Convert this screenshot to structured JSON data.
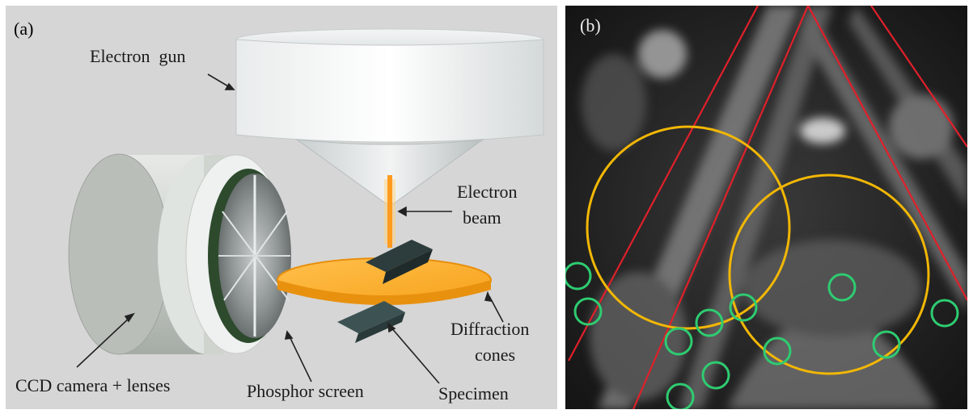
{
  "panel_a": {
    "label": "(a)",
    "callouts": {
      "electron_gun": "Electron  gun",
      "electron_beam_1": "Electron",
      "electron_beam_2": "beam",
      "diffraction_1": "Diffraction",
      "diffraction_2": "cones",
      "ccd": "CCD camera + lenses",
      "phosphor": "Phosphor screen",
      "specimen": "Specimen"
    }
  },
  "panel_b": {
    "label": "(b)",
    "colors": {
      "kikuchi_lines": "#e0202a",
      "circles": "#f2b705",
      "markers": "#2ecc71"
    }
  }
}
